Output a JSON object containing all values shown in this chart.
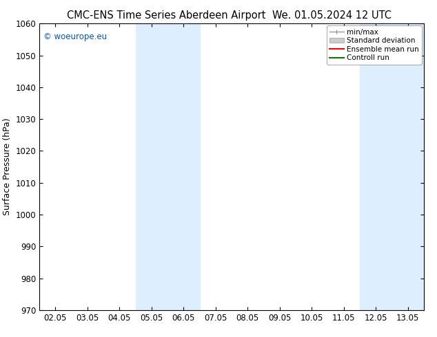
{
  "title_left": "CMC-ENS Time Series Aberdeen Airport",
  "title_right": "We. 01.05.2024 12 UTC",
  "ylabel": "Surface Pressure (hPa)",
  "ylim": [
    970,
    1060
  ],
  "yticks": [
    970,
    980,
    990,
    1000,
    1010,
    1020,
    1030,
    1040,
    1050,
    1060
  ],
  "xtick_labels": [
    "02.05",
    "03.05",
    "04.05",
    "05.05",
    "06.05",
    "07.05",
    "08.05",
    "09.05",
    "10.05",
    "11.05",
    "12.05",
    "13.05"
  ],
  "xtick_positions": [
    0,
    1,
    2,
    3,
    4,
    5,
    6,
    7,
    8,
    9,
    10,
    11
  ],
  "xlim": [
    -0.5,
    11.5
  ],
  "shaded_bands": [
    {
      "x_start": 2.5,
      "x_end": 4.5
    },
    {
      "x_start": 9.5,
      "x_end": 11.5
    }
  ],
  "shade_color": "#ddeeff",
  "watermark_text": "© woeurope.eu",
  "watermark_color": "#0055cc",
  "legend_labels": [
    "min/max",
    "Standard deviation",
    "Ensemble mean run",
    "Controll run"
  ],
  "background_color": "#ffffff",
  "title_fontsize": 10.5,
  "axis_fontsize": 9,
  "tick_fontsize": 8.5
}
